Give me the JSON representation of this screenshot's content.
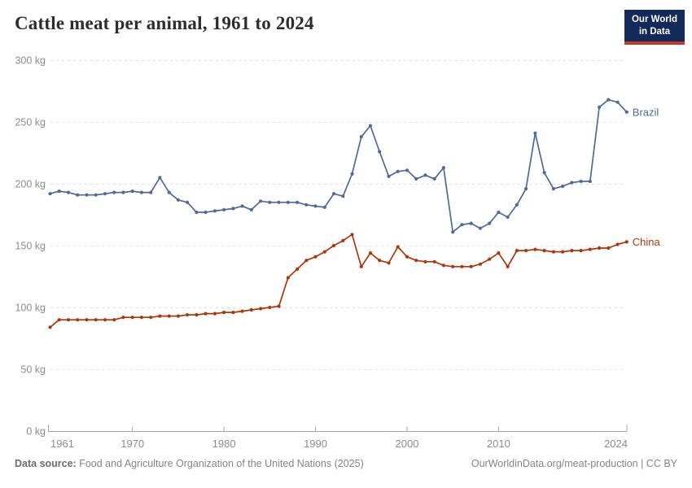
{
  "header": {
    "title": "Cattle meat per animal, 1961 to 2024",
    "logo": {
      "line1": "Our World",
      "line2": "in Data"
    }
  },
  "chart_data": {
    "type": "line",
    "title": "Cattle meat per animal, 1961 to 2024",
    "unit": "kg",
    "xlim": [
      1961,
      2024
    ],
    "ylim": [
      0,
      300
    ],
    "y_ticks": [
      0,
      50,
      100,
      150,
      200,
      250,
      300
    ],
    "y_tick_suffix": " kg",
    "x_ticks": [
      1961,
      1970,
      1980,
      1990,
      2000,
      2010,
      2024
    ],
    "grid": "horizontal-dashed",
    "legend_position": "line-end-labels",
    "x": [
      1961,
      1962,
      1963,
      1964,
      1965,
      1966,
      1967,
      1968,
      1969,
      1970,
      1971,
      1972,
      1973,
      1974,
      1975,
      1976,
      1977,
      1978,
      1979,
      1980,
      1981,
      1982,
      1983,
      1984,
      1985,
      1986,
      1987,
      1988,
      1989,
      1990,
      1991,
      1992,
      1993,
      1994,
      1995,
      1996,
      1997,
      1998,
      1999,
      2000,
      2001,
      2002,
      2003,
      2004,
      2005,
      2006,
      2007,
      2008,
      2009,
      2010,
      2011,
      2012,
      2013,
      2014,
      2015,
      2016,
      2017,
      2018,
      2019,
      2020,
      2021,
      2022,
      2023,
      2024
    ],
    "series": [
      {
        "name": "Brazil",
        "color": "#4C6A9C",
        "values": [
          192,
          194,
          193,
          191,
          191,
          191,
          192,
          193,
          193,
          194,
          193,
          193,
          205,
          193,
          187,
          185,
          177,
          177,
          178,
          179,
          180,
          182,
          179,
          186,
          185,
          185,
          185,
          185,
          183,
          182,
          181,
          192,
          190,
          208,
          238,
          247,
          226,
          206,
          210,
          211,
          204,
          207,
          204,
          213,
          161,
          167,
          168,
          164,
          168,
          177,
          173,
          183,
          196,
          241,
          209,
          196,
          198,
          201,
          202,
          202,
          262,
          268,
          266,
          258
        ]
      },
      {
        "name": "China",
        "color": "#B13507",
        "values": [
          84,
          90,
          90,
          90,
          90,
          90,
          90,
          90,
          92,
          92,
          92,
          92,
          93,
          93,
          93,
          94,
          94,
          95,
          95,
          96,
          96,
          97,
          98,
          99,
          100,
          101,
          124,
          131,
          138,
          141,
          145,
          150,
          154,
          159,
          133,
          144,
          138,
          136,
          149,
          141,
          138,
          137,
          137,
          134,
          133,
          133,
          133,
          135,
          139,
          144,
          133,
          146,
          146,
          147,
          146,
          145,
          145,
          146,
          146,
          147,
          148,
          148,
          151,
          153
        ]
      }
    ]
  },
  "footer": {
    "datasource_label": "Data source:",
    "datasource_text": "Food and Agriculture Organization of the United Nations (2025)",
    "attribution": "OurWorldinData.org/meat-production | CC BY"
  }
}
